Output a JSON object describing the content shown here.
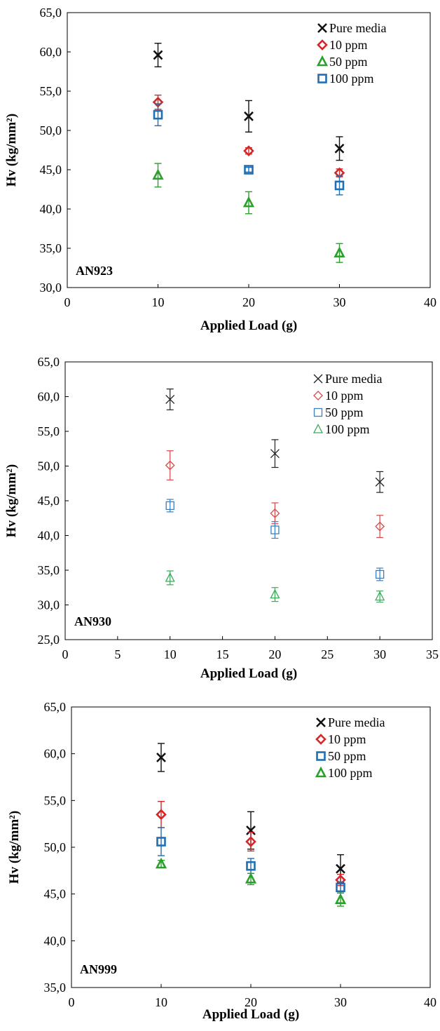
{
  "chart_data": [
    {
      "type": "scatter",
      "xlabel": "Applied Load (g)",
      "ylabel": "Hv (kg/mm²)",
      "xlim": [
        0,
        40
      ],
      "ylim": [
        30,
        65
      ],
      "xticks": [
        0,
        10,
        20,
        30,
        40
      ],
      "xtick_labels": [
        "0",
        "10",
        "20",
        "30",
        "40"
      ],
      "yticks": [
        30,
        35,
        40,
        45,
        50,
        55,
        60,
        65
      ],
      "ytick_labels": [
        "30,0",
        "35,0",
        "40,0",
        "45,0",
        "50,0",
        "55,0",
        "60,0",
        "65,0"
      ],
      "annotation": "AN923",
      "grid": false,
      "legend_position": "top-right",
      "x": [
        10,
        20,
        30
      ],
      "series": [
        {
          "name": "Pure media",
          "marker": "x",
          "color": "#111111",
          "values": [
            59.6,
            51.8,
            47.7
          ],
          "errors": [
            1.5,
            2.0,
            1.5
          ]
        },
        {
          "name": "10 ppm",
          "marker": "diamond",
          "color": "#d62728",
          "values": [
            53.6,
            47.4,
            44.6
          ],
          "errors": [
            0.9,
            0.4,
            0.5
          ]
        },
        {
          "name": "50 ppm",
          "marker": "triangle",
          "color": "#2ca02c",
          "values": [
            44.3,
            40.8,
            34.4
          ],
          "errors": [
            1.5,
            1.4,
            1.2
          ]
        },
        {
          "name": "100 ppm",
          "marker": "square",
          "color": "#1f6fb4",
          "values": [
            52.0,
            45.0,
            43.0
          ],
          "errors": [
            1.4,
            0.3,
            1.2
          ]
        }
      ]
    },
    {
      "type": "scatter",
      "xlabel": "Applied Load (g)",
      "ylabel": "Hv (kg/mm²)",
      "xlim": [
        0,
        35
      ],
      "ylim": [
        25,
        65
      ],
      "xticks": [
        0,
        5,
        10,
        15,
        20,
        25,
        30,
        35
      ],
      "xtick_labels": [
        "0",
        "5",
        "10",
        "15",
        "20",
        "25",
        "30",
        "35"
      ],
      "yticks": [
        25,
        30,
        35,
        40,
        45,
        50,
        55,
        60,
        65
      ],
      "ytick_labels": [
        "25,0",
        "30,0",
        "35,0",
        "40,0",
        "45,0",
        "50,0",
        "55,0",
        "60,0",
        "65,0"
      ],
      "annotation": "AN930",
      "grid": false,
      "legend_position": "top-right",
      "x": [
        10,
        20,
        30
      ],
      "series": [
        {
          "name": "Pure media",
          "marker": "x-thin",
          "color": "#222222",
          "values": [
            59.6,
            51.8,
            47.7
          ],
          "errors": [
            1.5,
            2.0,
            1.5
          ]
        },
        {
          "name": "10 ppm",
          "marker": "diamond-thin",
          "color": "#d44a4a",
          "values": [
            50.1,
            43.2,
            41.3
          ],
          "errors": [
            2.1,
            1.5,
            1.6
          ]
        },
        {
          "name": "50 ppm",
          "marker": "square-thin",
          "color": "#3a7fc0",
          "values": [
            44.3,
            40.8,
            34.4
          ],
          "errors": [
            0.9,
            1.2,
            0.9
          ]
        },
        {
          "name": "100 ppm",
          "marker": "triangle-thin",
          "color": "#3daa5a",
          "values": [
            33.9,
            31.5,
            31.2
          ],
          "errors": [
            1.0,
            1.0,
            0.8
          ]
        }
      ]
    },
    {
      "type": "scatter",
      "xlabel": "Applied Load (g)",
      "ylabel": "Hv (kg/mm²)",
      "xlim": [
        0,
        40
      ],
      "ylim": [
        35,
        65
      ],
      "xticks": [
        0,
        10,
        20,
        30,
        40
      ],
      "xtick_labels": [
        "0",
        "10",
        "20",
        "30",
        "40"
      ],
      "yticks": [
        35,
        40,
        45,
        50,
        55,
        60,
        65
      ],
      "ytick_labels": [
        "35,0",
        "40,0",
        "45,0",
        "50,0",
        "55,0",
        "60,0",
        "65,0"
      ],
      "annotation": "AN999",
      "grid": false,
      "legend_position": "top-right",
      "x": [
        10,
        20,
        30
      ],
      "series": [
        {
          "name": "Pure media",
          "marker": "x",
          "color": "#111111",
          "values": [
            59.6,
            51.8,
            47.7
          ],
          "errors": [
            1.5,
            2.0,
            1.5
          ]
        },
        {
          "name": "10 ppm",
          "marker": "diamond",
          "color": "#d62728",
          "values": [
            53.5,
            50.6,
            46.5
          ],
          "errors": [
            1.4,
            1.0,
            0.6
          ]
        },
        {
          "name": "50 ppm",
          "marker": "square",
          "color": "#1f6fb4",
          "values": [
            50.6,
            48.0,
            45.7
          ],
          "errors": [
            1.5,
            0.8,
            0.6
          ]
        },
        {
          "name": "100 ppm",
          "marker": "triangle",
          "color": "#2ca02c",
          "values": [
            48.2,
            46.6,
            44.4
          ],
          "errors": [
            0.4,
            0.6,
            0.7
          ]
        }
      ]
    }
  ]
}
